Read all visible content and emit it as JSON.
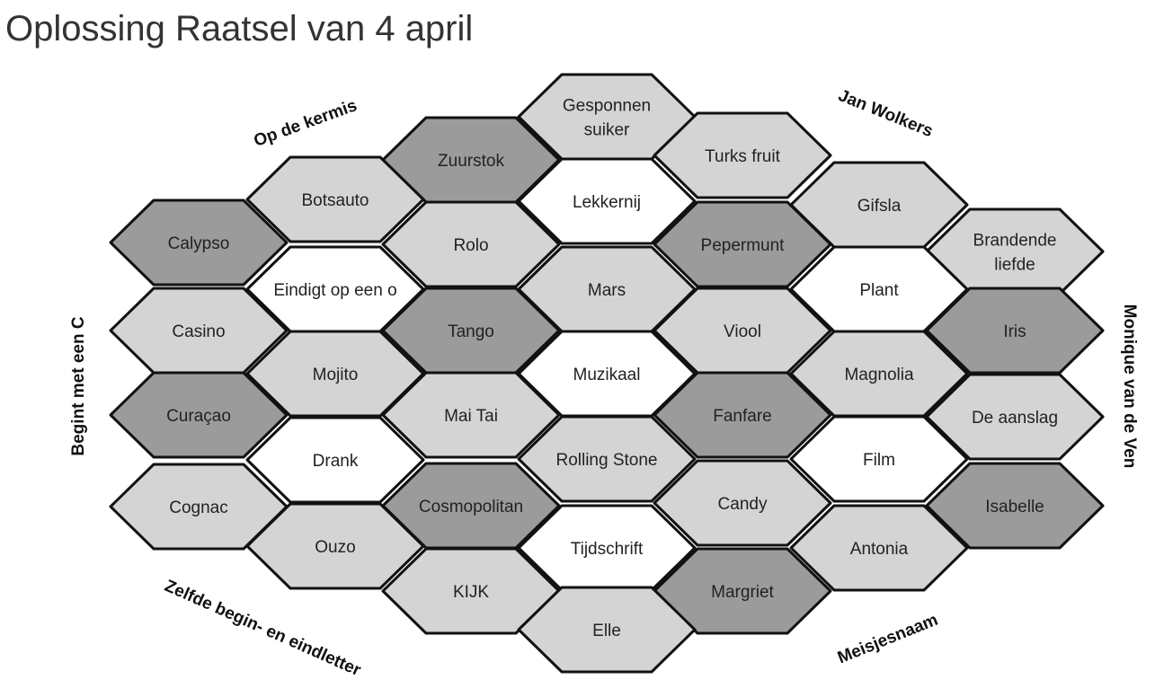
{
  "title": "Oplossing Raatsel van 4 april",
  "colors": {
    "dark": "#9b9b9b",
    "light": "#d4d4d4",
    "white": "#ffffff",
    "stroke": "#111111"
  },
  "categories": {
    "top_left": "Op de kermis",
    "top_right": "Jan Wolkers",
    "left": "Begint met een C",
    "right": "Monique van de Ven",
    "bottom_left": "Zelfde begin- en eindletter",
    "bottom_right": "Meisjesnaam"
  },
  "cells": [
    {
      "id": "gesponnen-suiker",
      "lines": [
        "Gesponnen",
        "suiker"
      ],
      "shade": "light"
    },
    {
      "id": "zuurstok",
      "lines": [
        "Zuurstok"
      ],
      "shade": "dark"
    },
    {
      "id": "turks-fruit",
      "lines": [
        "Turks fruit"
      ],
      "shade": "light"
    },
    {
      "id": "botsauto",
      "lines": [
        "Botsauto"
      ],
      "shade": "light"
    },
    {
      "id": "lekkernij",
      "lines": [
        "Lekkernij"
      ],
      "shade": "white"
    },
    {
      "id": "gifsla",
      "lines": [
        "Gifsla"
      ],
      "shade": "light"
    },
    {
      "id": "calypso",
      "lines": [
        "Calypso"
      ],
      "shade": "dark"
    },
    {
      "id": "rolo",
      "lines": [
        "Rolo"
      ],
      "shade": "light"
    },
    {
      "id": "pepermunt",
      "lines": [
        "Pepermunt"
      ],
      "shade": "dark"
    },
    {
      "id": "brandende-liefde",
      "lines": [
        "Brandende",
        "liefde"
      ],
      "shade": "light"
    },
    {
      "id": "eindigt-op-een-o",
      "lines": [
        "Eindigt op een o"
      ],
      "shade": "white"
    },
    {
      "id": "mars",
      "lines": [
        "Mars"
      ],
      "shade": "light"
    },
    {
      "id": "plant",
      "lines": [
        "Plant"
      ],
      "shade": "white"
    },
    {
      "id": "casino",
      "lines": [
        "Casino"
      ],
      "shade": "light"
    },
    {
      "id": "tango",
      "lines": [
        "Tango"
      ],
      "shade": "dark"
    },
    {
      "id": "viool",
      "lines": [
        "Viool"
      ],
      "shade": "light"
    },
    {
      "id": "iris",
      "lines": [
        "Iris"
      ],
      "shade": "dark"
    },
    {
      "id": "mojito",
      "lines": [
        "Mojito"
      ],
      "shade": "light"
    },
    {
      "id": "muzikaal",
      "lines": [
        "Muzikaal"
      ],
      "shade": "white"
    },
    {
      "id": "magnolia",
      "lines": [
        "Magnolia"
      ],
      "shade": "light"
    },
    {
      "id": "curacao",
      "lines": [
        "Curaçao"
      ],
      "shade": "dark"
    },
    {
      "id": "mai-tai",
      "lines": [
        "Mai Tai"
      ],
      "shade": "light"
    },
    {
      "id": "fanfare",
      "lines": [
        "Fanfare"
      ],
      "shade": "dark"
    },
    {
      "id": "de-aanslag",
      "lines": [
        "De aanslag"
      ],
      "shade": "light"
    },
    {
      "id": "drank",
      "lines": [
        "Drank"
      ],
      "shade": "white"
    },
    {
      "id": "rolling-stone",
      "lines": [
        "Rolling Stone"
      ],
      "shade": "light"
    },
    {
      "id": "film",
      "lines": [
        "Film"
      ],
      "shade": "white"
    },
    {
      "id": "cognac",
      "lines": [
        "Cognac"
      ],
      "shade": "light"
    },
    {
      "id": "cosmopolitan",
      "lines": [
        "Cosmopolitan"
      ],
      "shade": "dark"
    },
    {
      "id": "candy",
      "lines": [
        "Candy"
      ],
      "shade": "light"
    },
    {
      "id": "isabelle",
      "lines": [
        "Isabelle"
      ],
      "shade": "dark"
    },
    {
      "id": "ouzo",
      "lines": [
        "Ouzo"
      ],
      "shade": "light"
    },
    {
      "id": "tijdschrift",
      "lines": [
        "Tijdschrift"
      ],
      "shade": "white"
    },
    {
      "id": "antonia",
      "lines": [
        "Antonia"
      ],
      "shade": "light"
    },
    {
      "id": "kijk",
      "lines": [
        "KIJK"
      ],
      "shade": "light"
    },
    {
      "id": "margriet",
      "lines": [
        "Margriet"
      ],
      "shade": "dark"
    },
    {
      "id": "elle",
      "lines": [
        "Elle"
      ],
      "shade": "light"
    }
  ]
}
